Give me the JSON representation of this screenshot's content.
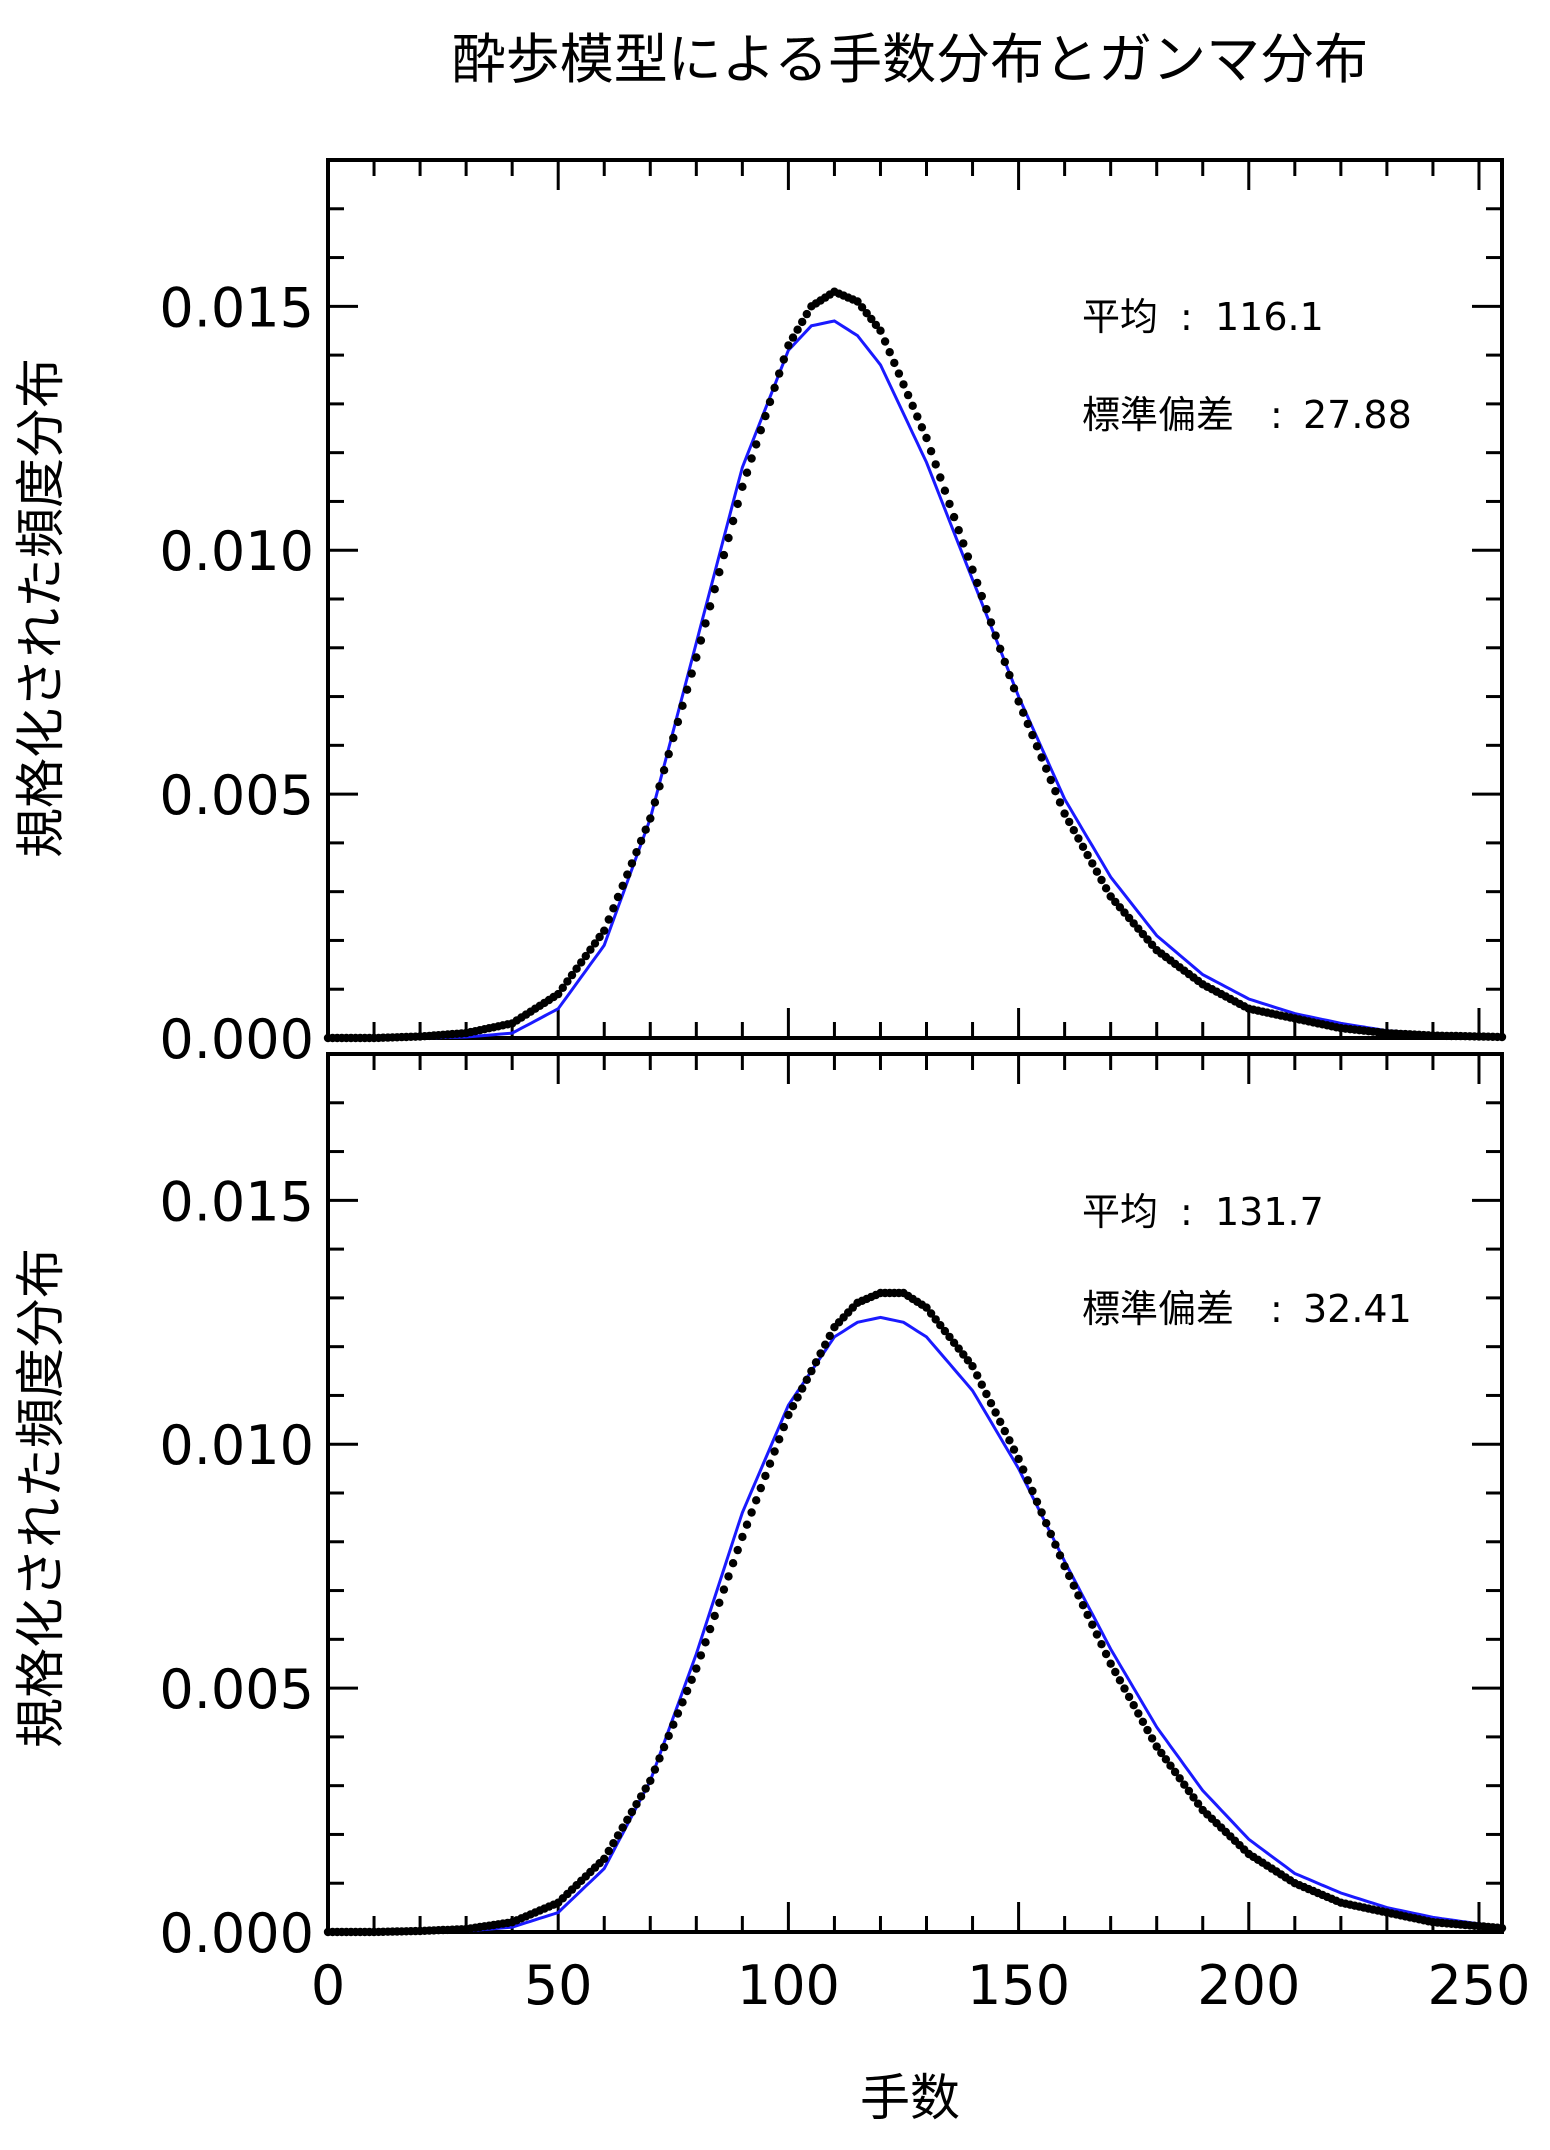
{
  "title": "酔歩模型による手数分布とガンマ分布",
  "colors": {
    "points": "#000000",
    "gamma_curve": "#1a1aff",
    "axes": "#000000"
  },
  "chart_data": [
    {
      "type": "scatter",
      "panel": "top",
      "title": "",
      "xlabel": "",
      "ylabel": "規格化された頻度分布",
      "xlim": [
        0,
        255
      ],
      "ylim": [
        0,
        0.018
      ],
      "x_ticks": [
        0,
        50,
        100,
        150,
        200,
        250
      ],
      "y_ticks": [
        "0.000",
        "0.005",
        "0.010",
        "0.015"
      ],
      "annotations": {
        "mean_label": "平均",
        "mean_value": "116.1",
        "sd_label": "標準偏差",
        "sd_value": "27.88",
        "separator": ":"
      },
      "stats": {
        "mean": 116.1,
        "sd": 27.88
      },
      "series": [
        {
          "kind": "points",
          "x": [
            0,
            10,
            20,
            30,
            40,
            50,
            60,
            70,
            80,
            90,
            100,
            105,
            110,
            115,
            120,
            130,
            140,
            150,
            160,
            170,
            180,
            190,
            200,
            210,
            220,
            230,
            240,
            255
          ],
          "y": [
            0,
            0,
            3e-05,
            0.0001,
            0.0003,
            0.0009,
            0.0022,
            0.0045,
            0.0078,
            0.0113,
            0.0142,
            0.015,
            0.0153,
            0.0151,
            0.0145,
            0.0123,
            0.0096,
            0.0069,
            0.0046,
            0.0029,
            0.0018,
            0.0011,
            0.0006,
            0.0004,
            0.0002,
            0.0001,
            5e-05,
            2e-05
          ]
        },
        {
          "kind": "curve",
          "x": [
            0,
            10,
            20,
            30,
            40,
            50,
            60,
            70,
            80,
            90,
            100,
            105,
            110,
            115,
            120,
            130,
            140,
            150,
            160,
            170,
            180,
            190,
            200,
            210,
            220,
            230,
            240,
            255
          ],
          "y": [
            0,
            0,
            0,
            2e-05,
            0.0001,
            0.0006,
            0.0019,
            0.0045,
            0.0081,
            0.0117,
            0.0141,
            0.0146,
            0.0147,
            0.0144,
            0.0138,
            0.0118,
            0.0094,
            0.007,
            0.0049,
            0.0033,
            0.0021,
            0.0013,
            0.0008,
            0.0005,
            0.0003,
            0.00015,
            8e-05,
            3e-05
          ]
        }
      ]
    },
    {
      "type": "scatter",
      "panel": "bottom",
      "title": "",
      "xlabel": "手数",
      "ylabel": "規格化された頻度分布",
      "xlim": [
        0,
        255
      ],
      "ylim": [
        0,
        0.018
      ],
      "x_ticks": [
        0,
        50,
        100,
        150,
        200,
        250
      ],
      "y_ticks": [
        "0.000",
        "0.005",
        "0.010",
        "0.015"
      ],
      "annotations": {
        "mean_label": "平均",
        "mean_value": "131.7",
        "sd_label": "標準偏差",
        "sd_value": "32.41",
        "separator": ":"
      },
      "stats": {
        "mean": 131.7,
        "sd": 32.41
      },
      "series": [
        {
          "kind": "points",
          "x": [
            0,
            10,
            20,
            30,
            40,
            50,
            60,
            70,
            80,
            90,
            100,
            110,
            115,
            120,
            125,
            130,
            140,
            150,
            160,
            170,
            180,
            190,
            200,
            210,
            220,
            230,
            240,
            255
          ],
          "y": [
            0,
            0,
            2e-05,
            6e-05,
            0.0002,
            0.0006,
            0.0015,
            0.0031,
            0.0054,
            0.0081,
            0.0106,
            0.0124,
            0.0129,
            0.0131,
            0.0131,
            0.0128,
            0.0116,
            0.0097,
            0.0075,
            0.0055,
            0.0038,
            0.0025,
            0.0016,
            0.001,
            0.0006,
            0.0004,
            0.0002,
            8e-05
          ]
        },
        {
          "kind": "curve",
          "x": [
            0,
            10,
            20,
            30,
            40,
            50,
            60,
            70,
            80,
            90,
            100,
            110,
            115,
            120,
            125,
            130,
            140,
            150,
            160,
            170,
            180,
            190,
            200,
            210,
            220,
            230,
            240,
            255
          ],
          "y": [
            0,
            0,
            0,
            2e-05,
            0.0001,
            0.0004,
            0.0013,
            0.0031,
            0.0057,
            0.0086,
            0.0108,
            0.0122,
            0.0125,
            0.0126,
            0.0125,
            0.0122,
            0.0111,
            0.0095,
            0.0076,
            0.0058,
            0.0042,
            0.0029,
            0.0019,
            0.0012,
            0.0008,
            0.0005,
            0.0003,
            0.0001
          ]
        }
      ]
    }
  ]
}
